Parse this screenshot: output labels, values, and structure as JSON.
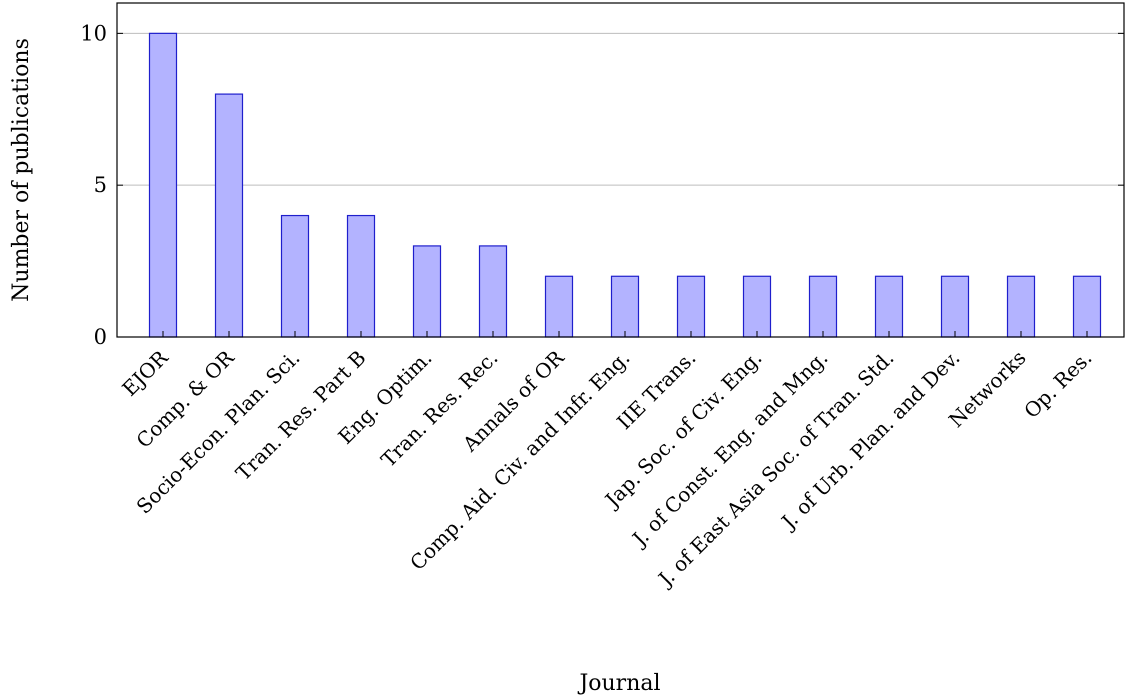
{
  "chart_data": {
    "type": "bar",
    "xlabel": "Journal",
    "ylabel": "Number of publications",
    "ylim": [
      0,
      11
    ],
    "yticks": [
      0,
      5,
      10
    ],
    "grid": "horizontal",
    "colors": {
      "bar_fill": "#b3b3ff",
      "bar_stroke": "#1f1fcc"
    },
    "categories": [
      "EJOR",
      "Comp. & OR",
      "Socio-Econ. Plan. Sci.",
      "Tran. Res. Part B",
      "Eng. Optim.",
      "Tran. Res. Rec.",
      "Annals of OR",
      "Comp. Aid. Civ. and Infr. Eng.",
      "IIE Trans.",
      "Jap. Soc. of Civ. Eng.",
      "J. of Const. Eng. and Mng.",
      "J. of East Asia Soc. of Tran. Std.",
      "J. of Urb. Plan. and Dev.",
      "Networks",
      "Op. Res."
    ],
    "values": [
      10,
      8,
      4,
      4,
      3,
      3,
      2,
      2,
      2,
      2,
      2,
      2,
      2,
      2,
      2
    ]
  }
}
